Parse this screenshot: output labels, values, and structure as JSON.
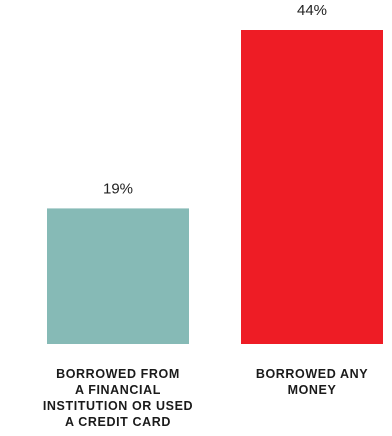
{
  "chart_data": {
    "type": "bar",
    "categories": [
      [
        "BORROWED FROM",
        "A FINANCIAL",
        "INSTITUTION OR USED",
        "A CREDIT CARD"
      ],
      [
        "BORROWED ANY",
        "MONEY"
      ]
    ],
    "values": [
      19,
      44
    ],
    "value_labels": [
      "19%",
      "44%"
    ],
    "colors": [
      "#86bab6",
      "#ee1c25"
    ],
    "title": "",
    "xlabel": "",
    "ylabel": "",
    "ylim": [
      0,
      44
    ],
    "grid": false,
    "legend": "none"
  }
}
